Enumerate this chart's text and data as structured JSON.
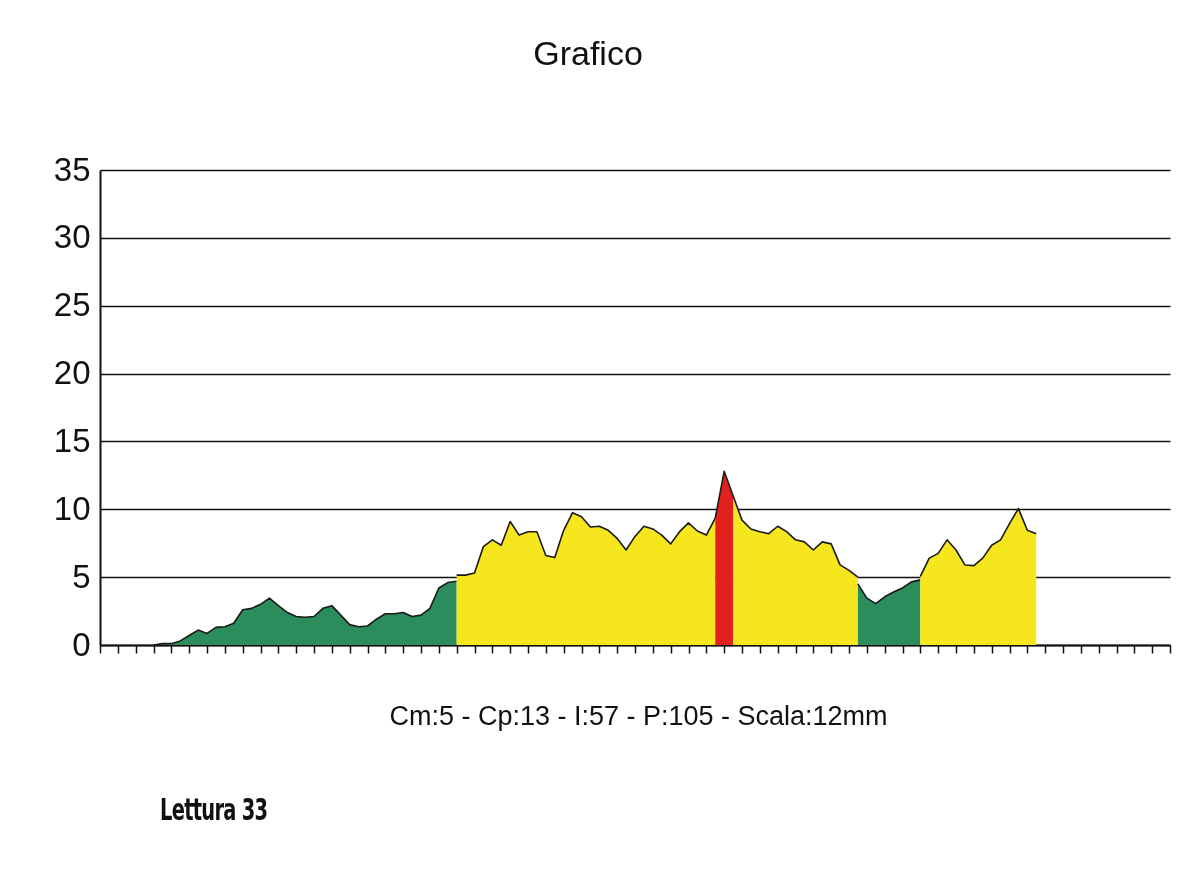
{
  "chart_data": {
    "type": "area",
    "title": "Grafico",
    "xlabel": "Cm:5  -  Cp:13  -  I:57  -  P:105  -  Scala:12mm",
    "annotations": [
      "Lettura 33"
    ],
    "categories": [
      null,
      null,
      null,
      null,
      null,
      null,
      null,
      null,
      null,
      null,
      null,
      null,
      null,
      null,
      null,
      null,
      null,
      null,
      null,
      null,
      null,
      null,
      null,
      null,
      null,
      null,
      null,
      null,
      null,
      null,
      null,
      null,
      null,
      null,
      null,
      null,
      null,
      null,
      null,
      null,
      null,
      null,
      null,
      null,
      null,
      null,
      null,
      null,
      null,
      null,
      null,
      null,
      null,
      null,
      null,
      null,
      null,
      null,
      null,
      null,
      null,
      null,
      null,
      null,
      null,
      null,
      null,
      null,
      null,
      null,
      null,
      null,
      null,
      null,
      null,
      null,
      null,
      null,
      null,
      null,
      null,
      null,
      null,
      null,
      null,
      null,
      null,
      null,
      null,
      null,
      null,
      null,
      null,
      null,
      null,
      null,
      null,
      null,
      null,
      null,
      null,
      null,
      null,
      null,
      null,
      null,
      null,
      null,
      null,
      null,
      null,
      null,
      null,
      null,
      null,
      null,
      null,
      null,
      null,
      null,
      null
    ],
    "ylim": [
      0,
      35
    ],
    "yticks": [
      0,
      5,
      10,
      15,
      20,
      25,
      30,
      35
    ],
    "grid": "y",
    "series": [
      {
        "color": "#2b8c5c",
        "values": [
          null,
          null,
          null,
          null,
          null,
          null,
          0,
          0.1,
          0.1,
          0.3,
          0.7,
          1.1,
          0.85,
          1.3,
          1.35,
          1.6,
          2.6,
          2.7,
          3.0,
          3.45,
          2.9,
          2.4,
          2.1,
          2.05,
          2.1,
          2.7,
          2.9,
          2.2,
          1.5,
          1.35,
          1.4,
          1.9,
          2.3,
          2.3,
          2.4,
          2.1,
          2.2,
          2.7,
          4.2,
          4.6,
          4.7,
          null,
          null,
          null,
          null,
          null,
          null,
          null,
          null,
          null,
          null,
          null,
          null,
          null,
          null,
          null,
          null,
          null,
          null,
          null,
          null,
          null,
          null,
          null,
          null,
          null,
          null,
          null,
          null,
          null,
          null,
          null,
          null,
          null,
          null,
          null,
          null,
          null,
          null,
          null,
          null,
          null,
          null,
          null,
          null,
          null,
          null,
          null,
          null,
          null,
          null,
          null,
          null,
          null,
          null,
          null,
          null,
          null,
          null,
          null,
          null,
          null,
          null,
          null,
          null,
          null,
          null,
          null,
          null,
          null,
          null,
          null,
          null,
          null,
          null,
          null,
          null,
          null,
          null,
          null,
          null
        ]
      },
      {
        "color": "#f5e61e",
        "values": [
          null,
          null,
          null,
          null,
          null,
          null,
          null,
          null,
          null,
          null,
          null,
          null,
          null,
          null,
          null,
          null,
          null,
          null,
          null,
          null,
          null,
          null,
          null,
          null,
          null,
          null,
          null,
          null,
          null,
          null,
          null,
          null,
          null,
          null,
          null,
          null,
          null,
          null,
          null,
          null,
          5.15,
          5.15,
          5.3,
          7.25,
          7.75,
          7.35,
          9.1,
          8.1,
          8.35,
          8.35,
          6.6,
          6.45,
          8.45,
          9.75,
          9.45,
          8.7,
          8.75,
          8.45,
          7.85,
          7.0,
          8.0,
          8.75,
          8.55,
          8.1,
          7.45,
          8.35,
          9.0,
          8.4,
          8.1,
          9.35,
          null,
          null,
          null,
          null,
          null,
          null,
          null,
          null,
          null,
          null,
          null,
          null,
          null,
          null,
          null,
          null,
          null,
          null,
          null,
          null,
          null,
          null,
          null,
          null,
          null,
          null,
          null,
          null,
          null,
          null,
          null,
          null,
          null,
          null,
          null,
          null,
          null,
          null,
          null,
          null,
          null,
          null,
          null,
          null,
          null,
          null,
          null,
          null,
          null,
          null,
          null
        ]
      },
      {
        "color": "#e3211c",
        "values": [
          null,
          null,
          null,
          null,
          null,
          null,
          null,
          null,
          null,
          null,
          null,
          null,
          null,
          null,
          null,
          null,
          null,
          null,
          null,
          null,
          null,
          null,
          null,
          null,
          null,
          null,
          null,
          null,
          null,
          null,
          null,
          null,
          null,
          null,
          null,
          null,
          null,
          null,
          null,
          null,
          null,
          null,
          null,
          null,
          null,
          null,
          null,
          null,
          null,
          null,
          null,
          null,
          null,
          null,
          null,
          null,
          null,
          null,
          null,
          null,
          null,
          null,
          null,
          null,
          null,
          null,
          null,
          null,
          null,
          9.35,
          12.8,
          11.0,
          null,
          null,
          null,
          null,
          null,
          null,
          null,
          null,
          null,
          null,
          null,
          null,
          null,
          null,
          null,
          null,
          null,
          null,
          null,
          null,
          null,
          null,
          null,
          null,
          null,
          null,
          null,
          null,
          null,
          null,
          null,
          null,
          null,
          null,
          null,
          null,
          null,
          null,
          null,
          null,
          null,
          null,
          null,
          null,
          null,
          null,
          null,
          null,
          null
        ]
      },
      {
        "color": "#f5e61e",
        "values": [
          null,
          null,
          null,
          null,
          null,
          null,
          null,
          null,
          null,
          null,
          null,
          null,
          null,
          null,
          null,
          null,
          null,
          null,
          null,
          null,
          null,
          null,
          null,
          null,
          null,
          null,
          null,
          null,
          null,
          null,
          null,
          null,
          null,
          null,
          null,
          null,
          null,
          null,
          null,
          null,
          null,
          null,
          null,
          null,
          null,
          null,
          null,
          null,
          null,
          null,
          null,
          null,
          null,
          null,
          null,
          null,
          null,
          null,
          null,
          null,
          null,
          null,
          null,
          null,
          null,
          null,
          null,
          null,
          null,
          null,
          null,
          11.0,
          9.2,
          8.55,
          8.35,
          8.2,
          8.75,
          8.35,
          7.75,
          7.6,
          7.0,
          7.6,
          7.45,
          5.9,
          5.5,
          5.0,
          null,
          null,
          null,
          null,
          null,
          null,
          null,
          null,
          null,
          null,
          null,
          null,
          null,
          null,
          null,
          null,
          null,
          null,
          null,
          null,
          null,
          null,
          null,
          null,
          null,
          null,
          null,
          null,
          null,
          null,
          null,
          null,
          null,
          null,
          null
        ]
      },
      {
        "color": "#2b8c5c",
        "values": [
          null,
          null,
          null,
          null,
          null,
          null,
          null,
          null,
          null,
          null,
          null,
          null,
          null,
          null,
          null,
          null,
          null,
          null,
          null,
          null,
          null,
          null,
          null,
          null,
          null,
          null,
          null,
          null,
          null,
          null,
          null,
          null,
          null,
          null,
          null,
          null,
          null,
          null,
          null,
          null,
          null,
          null,
          null,
          null,
          null,
          null,
          null,
          null,
          null,
          null,
          null,
          null,
          null,
          null,
          null,
          null,
          null,
          null,
          null,
          null,
          null,
          null,
          null,
          null,
          null,
          null,
          null,
          null,
          null,
          null,
          null,
          null,
          null,
          null,
          null,
          null,
          null,
          null,
          null,
          null,
          null,
          null,
          null,
          null,
          null,
          4.5,
          3.45,
          3.05,
          3.55,
          3.9,
          4.2,
          4.65,
          4.8,
          null,
          null,
          null,
          null,
          null,
          null,
          null,
          null,
          null,
          null,
          null,
          null,
          null,
          null,
          null,
          null,
          null,
          null,
          null,
          null,
          null,
          null,
          null,
          null,
          null,
          null,
          null,
          null
        ]
      },
      {
        "color": "#f5e61e",
        "values": [
          null,
          null,
          null,
          null,
          null,
          null,
          null,
          null,
          null,
          null,
          null,
          null,
          null,
          null,
          null,
          null,
          null,
          null,
          null,
          null,
          null,
          null,
          null,
          null,
          null,
          null,
          null,
          null,
          null,
          null,
          null,
          null,
          null,
          null,
          null,
          null,
          null,
          null,
          null,
          null,
          null,
          null,
          null,
          null,
          null,
          null,
          null,
          null,
          null,
          null,
          null,
          null,
          null,
          null,
          null,
          null,
          null,
          null,
          null,
          null,
          null,
          null,
          null,
          null,
          null,
          null,
          null,
          null,
          null,
          null,
          null,
          null,
          null,
          null,
          null,
          null,
          null,
          null,
          null,
          null,
          null,
          null,
          null,
          null,
          null,
          null,
          null,
          null,
          null,
          null,
          null,
          null,
          5.05,
          6.4,
          6.75,
          7.75,
          7.0,
          5.9,
          5.85,
          6.4,
          7.35,
          7.75,
          8.95,
          10.05,
          8.45,
          8.2,
          null,
          null,
          null,
          null,
          null,
          null,
          null,
          null,
          null,
          null,
          null,
          null,
          null,
          null,
          null
        ]
      }
    ]
  }
}
